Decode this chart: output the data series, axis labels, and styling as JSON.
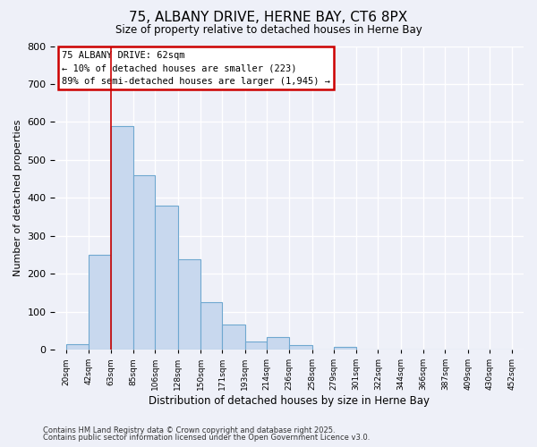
{
  "title": "75, ALBANY DRIVE, HERNE BAY, CT6 8PX",
  "subtitle": "Size of property relative to detached houses in Herne Bay",
  "xlabel": "Distribution of detached houses by size in Herne Bay",
  "ylabel": "Number of detached properties",
  "bar_color": "#c8d8ee",
  "bar_edge_color": "#6fa8d0",
  "background_color": "#eef0f8",
  "grid_color": "#ffffff",
  "vline_x": 63,
  "vline_color": "#cc0000",
  "ylim": [
    0,
    800
  ],
  "yticks": [
    0,
    100,
    200,
    300,
    400,
    500,
    600,
    700,
    800
  ],
  "bin_edges": [
    20,
    42,
    63,
    85,
    106,
    128,
    150,
    171,
    193,
    214,
    236,
    258,
    279,
    301,
    322,
    344,
    366,
    387,
    409,
    430,
    452
  ],
  "bin_heights": [
    15,
    250,
    590,
    460,
    380,
    237,
    125,
    67,
    22,
    32,
    12,
    0,
    8,
    0,
    0,
    0,
    0,
    0,
    0,
    0
  ],
  "annotation_title": "75 ALBANY DRIVE: 62sqm",
  "annotation_line1": "← 10% of detached houses are smaller (223)",
  "annotation_line2": "89% of semi-detached houses are larger (1,945) →",
  "annotation_box_color": "#ffffff",
  "annotation_box_edge": "#cc0000",
  "footnote1": "Contains HM Land Registry data © Crown copyright and database right 2025.",
  "footnote2": "Contains public sector information licensed under the Open Government Licence v3.0.",
  "tick_labels": [
    "20sqm",
    "42sqm",
    "63sqm",
    "85sqm",
    "106sqm",
    "128sqm",
    "150sqm",
    "171sqm",
    "193sqm",
    "214sqm",
    "236sqm",
    "258sqm",
    "279sqm",
    "301sqm",
    "322sqm",
    "344sqm",
    "366sqm",
    "387sqm",
    "409sqm",
    "430sqm",
    "452sqm"
  ]
}
